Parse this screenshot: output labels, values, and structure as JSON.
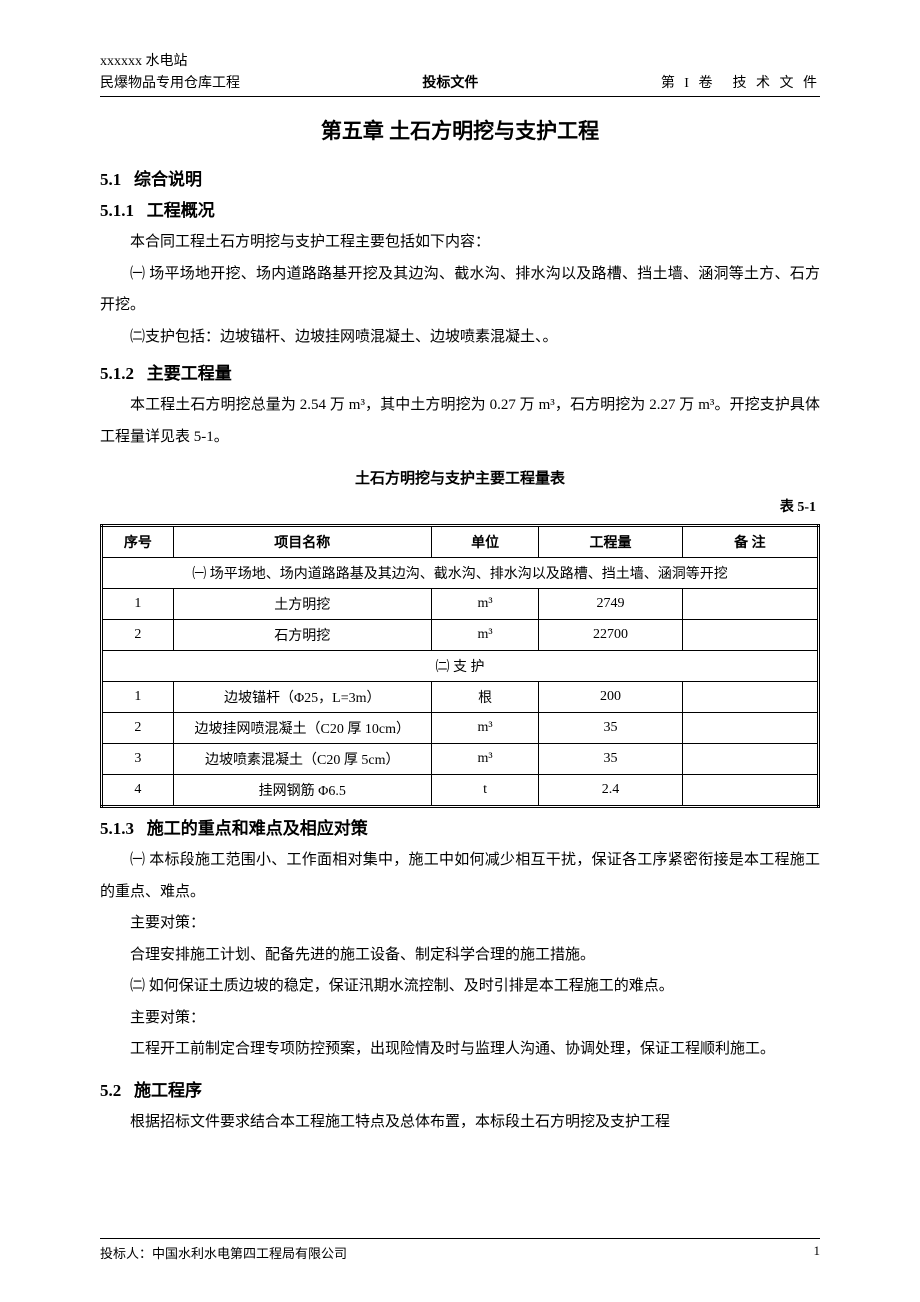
{
  "header": {
    "top_left": "xxxxxx 水电站",
    "left": "民爆物品专用仓库工程",
    "center": "投标文件",
    "right": "第 I 卷　技 术 文 件"
  },
  "chapter_title": "第五章  土石方明挖与支护工程",
  "s51": {
    "num": "5.1",
    "title": "综合说明"
  },
  "s511": {
    "num": "5.1.1",
    "title": "工程概况"
  },
  "p1": "本合同工程土石方明挖与支护工程主要包括如下内容：",
  "p2": "㈠ 场平场地开挖、场内道路路基开挖及其边沟、截水沟、排水沟以及路槽、挡土墙、涵洞等土方、石方开挖。",
  "p3": "㈡支护包括：边坡锚杆、边坡挂网喷混凝土、边坡喷素混凝土、。",
  "s512": {
    "num": "5.1.2",
    "title": "主要工程量"
  },
  "p4": "本工程土石方明挖总量为 2.54 万 m³，其中土方明挖为 0.27 万 m³，石方明挖为 2.27 万 m³。开挖支护具体工程量详见表 5-1。",
  "table": {
    "title": "土石方明挖与支护主要工程量表",
    "label": "表 5-1",
    "cols": {
      "seq": "序号",
      "name": "项目名称",
      "unit": "单位",
      "qty": "工程量",
      "note": "备 注"
    },
    "section1": "㈠ 场平场地、场内道路路基及其边沟、截水沟、排水沟以及路槽、挡土墙、涵洞等开挖",
    "section2": "㈡ 支 护",
    "rows1": [
      {
        "seq": "1",
        "name": "土方明挖",
        "unit": "m³",
        "qty": "2749",
        "note": ""
      },
      {
        "seq": "2",
        "name": "石方明挖",
        "unit": "m³",
        "qty": "22700",
        "note": ""
      }
    ],
    "rows2": [
      {
        "seq": "1",
        "name": "边坡锚杆（Φ25，L=3m）",
        "unit": "根",
        "qty": "200",
        "note": ""
      },
      {
        "seq": "2",
        "name": "边坡挂网喷混凝土（C20  厚 10cm）",
        "unit": "m³",
        "qty": "35",
        "note": ""
      },
      {
        "seq": "3",
        "name": "边坡喷素混凝土（C20  厚 5cm）",
        "unit": "m³",
        "qty": "35",
        "note": ""
      },
      {
        "seq": "4",
        "name": "挂网钢筋 Φ6.5",
        "unit": "t",
        "qty": "2.4",
        "note": ""
      }
    ]
  },
  "s513": {
    "num": "5.1.3",
    "title": "施工的重点和难点及相应对策"
  },
  "p5": "㈠ 本标段施工范围小、工作面相对集中，施工中如何减少相互干扰，保证各工序紧密衔接是本工程施工的重点、难点。",
  "p6": "主要对策：",
  "p7": "合理安排施工计划、配备先进的施工设备、制定科学合理的施工措施。",
  "p8": "㈡ 如何保证土质边坡的稳定，保证汛期水流控制、及时引排是本工程施工的难点。",
  "p9": "主要对策：",
  "p10": "工程开工前制定合理专项防控预案，出现险情及时与监理人沟通、协调处理，保证工程顺利施工。",
  "s52": {
    "num": "5.2",
    "title": "施工程序"
  },
  "p11": "根据招标文件要求结合本工程施工特点及总体布置，本标段土石方明挖及支护工程",
  "footer": {
    "left": "投标人：中国水利水电第四工程局有限公司",
    "page": "1"
  }
}
